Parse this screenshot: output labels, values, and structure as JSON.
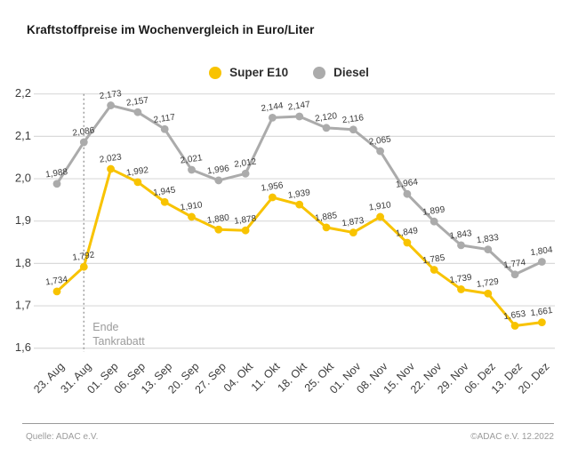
{
  "title": "Kraftstoffpreise im Wochenvergleich in Euro/Liter",
  "legend": [
    {
      "label": "Super E10",
      "color": "#F8C300"
    },
    {
      "label": "Diesel",
      "color": "#ABABAB"
    }
  ],
  "chart_data": {
    "type": "line",
    "title": "Kraftstoffpreise im Wochenvergleich in Euro/Liter",
    "xlabel": "",
    "ylabel": "Euro/Liter",
    "ylim": [
      1.6,
      2.2
    ],
    "grid": true,
    "legend_position": "top-center",
    "categories": [
      "23. Aug",
      "31. Aug",
      "01. Sep",
      "06. Sep",
      "13. Sep",
      "20. Sep",
      "27. Sep",
      "04. Okt",
      "11. Okt",
      "18. Okt",
      "25. Okt",
      "01. Nov",
      "08. Nov",
      "15. Nov",
      "22. Nov",
      "29. Nov",
      "06. Dez",
      "13. Dez",
      "20. Dez"
    ],
    "y_ticks": [
      "2,2",
      "2,1",
      "2,0",
      "1,9",
      "1,8",
      "1,7",
      "1,6"
    ],
    "series": [
      {
        "name": "Super E10",
        "color": "#F8C300",
        "values": [
          1.734,
          1.792,
          2.023,
          1.992,
          1.945,
          1.91,
          1.88,
          1.878,
          1.956,
          1.939,
          1.885,
          1.873,
          1.91,
          1.849,
          1.785,
          1.739,
          1.729,
          1.653,
          1.661
        ],
        "labels": [
          "1,734",
          "1,792",
          "2,023",
          "1,992",
          "1,945",
          "1,910",
          "1,880",
          "1,878",
          "1,956",
          "1,939",
          "1,885",
          "1,873",
          "1,910",
          "1,849",
          "1,785",
          "1,739",
          "1,729",
          "1,653",
          "1,661"
        ]
      },
      {
        "name": "Diesel",
        "color": "#ABABAB",
        "values": [
          1.988,
          2.086,
          2.173,
          2.157,
          2.117,
          2.021,
          1.996,
          2.012,
          2.144,
          2.147,
          2.12,
          2.116,
          2.065,
          1.964,
          1.899,
          1.843,
          1.833,
          1.774,
          1.804
        ],
        "labels": [
          "1,988",
          "2,086",
          "2,173",
          "2,157",
          "2,117",
          "2,021",
          "1,996",
          "2,012",
          "2,144",
          "2,147",
          "2,120",
          "2,116",
          "2,065",
          "1,964",
          "1,899",
          "1,843",
          "1,833",
          "1,774",
          "1,804"
        ]
      }
    ],
    "annotation": {
      "lines": [
        "Ende",
        "Tankrabatt"
      ],
      "at_category": "31. Aug"
    }
  },
  "footer": {
    "source": "Quelle: ADAC e.V.",
    "copyright": "©ADAC e.V.  12.2022"
  }
}
